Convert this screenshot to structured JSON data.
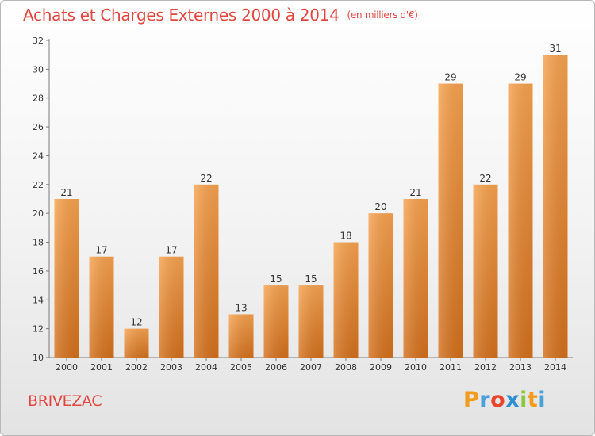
{
  "chart_data": {
    "type": "bar",
    "title": "Achats et Charges Externes 2000 à 2014",
    "subtitle": "(en milliers d'€)",
    "categories": [
      "2000",
      "2001",
      "2002",
      "2003",
      "2004",
      "2005",
      "2006",
      "2007",
      "2008",
      "2009",
      "2010",
      "2011",
      "2012",
      "2013",
      "2014"
    ],
    "values": [
      21,
      17,
      12,
      17,
      22,
      13,
      15,
      15,
      18,
      20,
      21,
      29,
      22,
      29,
      31
    ],
    "ylim": [
      10,
      32
    ],
    "yticks": [
      10,
      12,
      14,
      16,
      18,
      20,
      22,
      24,
      26,
      28,
      30,
      32
    ],
    "grid": false,
    "legend": "none",
    "bar_color_top": "#f7a24e",
    "bar_color_bottom": "#d4701c"
  },
  "commune": "BRIVEZAC",
  "logo": {
    "letters": [
      {
        "char": "P",
        "color": "#f29b1d"
      },
      {
        "char": "r",
        "color": "#4aa0d8"
      },
      {
        "char": "o",
        "color": "#e8452c"
      },
      {
        "char": "x",
        "color": "#2f8fd3"
      },
      {
        "char": "i",
        "color": "#8dc63f"
      },
      {
        "char": "t",
        "color": "#f29b1d"
      },
      {
        "char": "i",
        "color": "#4aa0d8"
      }
    ]
  }
}
